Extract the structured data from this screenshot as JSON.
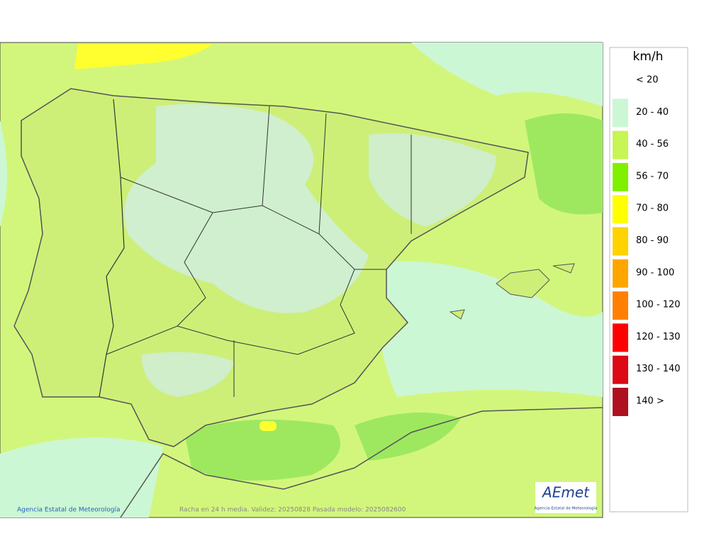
{
  "legend": {
    "unit": "km/h",
    "entries": [
      {
        "label": "< 20",
        "color": "#ffffff"
      },
      {
        "label": "20 - 40",
        "color": "#ccf7d4"
      },
      {
        "label": "40 - 56",
        "color": "#c6f554"
      },
      {
        "label": "56 - 70",
        "color": "#80f000"
      },
      {
        "label": "70 - 80",
        "color": "#ffff00"
      },
      {
        "label": "80 - 90",
        "color": "#ffd200"
      },
      {
        "label": "90 - 100",
        "color": "#ffa500"
      },
      {
        "label": "100 - 120",
        "color": "#ff8000"
      },
      {
        "label": "120 - 130",
        "color": "#ff0000"
      },
      {
        "label": "130 - 140",
        "color": "#dc0a14"
      },
      {
        "label": "140 >",
        "color": "#ae1020"
      }
    ]
  },
  "footer": {
    "credit": "Agencia Estatal de Meteorología",
    "caption": "Racha en 24 h media. Validez: 20250828 Pasada modelo: 2025082600"
  },
  "logo": {
    "text": "AEmet",
    "subtitle": "Agencia Estatal de Meteorología"
  }
}
